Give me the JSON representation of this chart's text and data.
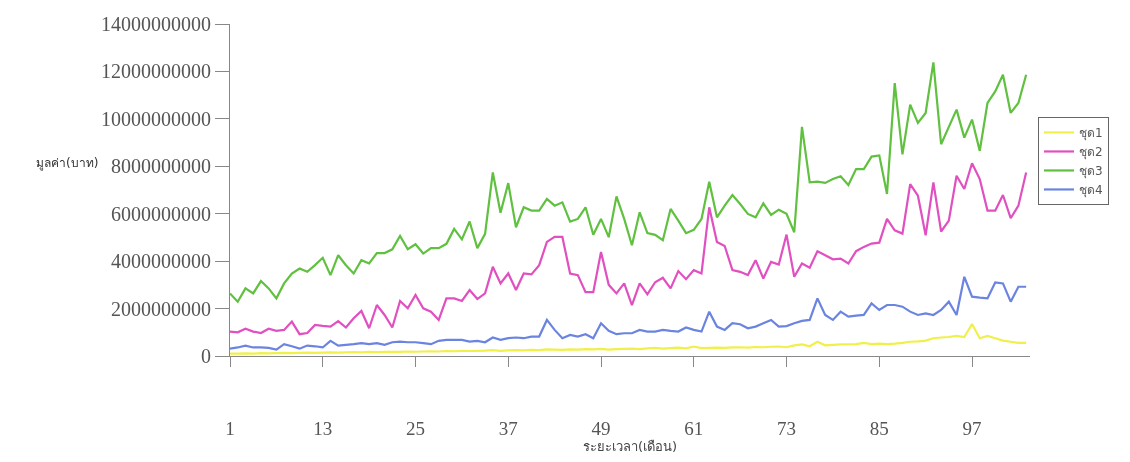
{
  "chart_data": {
    "type": "line",
    "xlabel": "ระยะเวลา(เดือน)",
    "ylabel": "มูลค่า(บาท)",
    "x": [
      1,
      2,
      3,
      4,
      5,
      6,
      7,
      8,
      9,
      10,
      11,
      12,
      13,
      14,
      15,
      16,
      17,
      18,
      19,
      20,
      21,
      22,
      23,
      24,
      25,
      26,
      27,
      28,
      29,
      30,
      31,
      32,
      33,
      34,
      35,
      36,
      37,
      38,
      39,
      40,
      41,
      42,
      43,
      44,
      45,
      46,
      47,
      48,
      49,
      50,
      51,
      52,
      53,
      54,
      55,
      56,
      57,
      58,
      59,
      60,
      61,
      62,
      63,
      64,
      65,
      66,
      67,
      68,
      69,
      70,
      71,
      72,
      73,
      74,
      75,
      76,
      77,
      78,
      79,
      80,
      81,
      82,
      83,
      84,
      85,
      86,
      87,
      88,
      89,
      90,
      91,
      92,
      93,
      94,
      95,
      96,
      97,
      98,
      99,
      100,
      101,
      102,
      103,
      104
    ],
    "xlim": [
      1,
      104.5
    ],
    "xticks": [
      1,
      13,
      25,
      37,
      49,
      61,
      73,
      85,
      97
    ],
    "ylim": [
      0,
      14000000000
    ],
    "yticks": [
      0,
      2000000000,
      4000000000,
      6000000000,
      8000000000,
      10000000000,
      12000000000,
      14000000000
    ],
    "legend": "right",
    "marker": "none",
    "line_style": "solid",
    "series": [
      {
        "name": "ชุด1",
        "color": "#f0f04a",
        "values": [
          100000000.0,
          100000000.0,
          110000000.0,
          100000000.0,
          120000000.0,
          110000000.0,
          120000000.0,
          130000000.0,
          120000000.0,
          130000000.0,
          140000000.0,
          130000000.0,
          140000000.0,
          150000000.0,
          140000000.0,
          150000000.0,
          160000000.0,
          150000000.0,
          170000000.0,
          160000000.0,
          170000000.0,
          180000000.0,
          170000000.0,
          190000000.0,
          180000000.0,
          190000000.0,
          200000000.0,
          190000000.0,
          210000000.0,
          200000000.0,
          220000000.0,
          210000000.0,
          220000000.0,
          230000000.0,
          250000000.0,
          220000000.0,
          240000000.0,
          250000000.0,
          240000000.0,
          260000000.0,
          250000000.0,
          280000000.0,
          270000000.0,
          260000000.0,
          280000000.0,
          270000000.0,
          290000000.0,
          280000000.0,
          300000000.0,
          270000000.0,
          290000000.0,
          300000000.0,
          310000000.0,
          290000000.0,
          320000000.0,
          340000000.0,
          310000000.0,
          330000000.0,
          350000000.0,
          320000000.0,
          400000000.0,
          330000000.0,
          340000000.0,
          350000000.0,
          340000000.0,
          360000000.0,
          370000000.0,
          350000000.0,
          380000000.0,
          370000000.0,
          390000000.0,
          400000000.0,
          370000000.0,
          450000000.0,
          490000000.0,
          410000000.0,
          600000000.0,
          450000000.0,
          470000000.0,
          490000000.0,
          490000000.0,
          500000000.0,
          550000000.0,
          500000000.0,
          520000000.0,
          500000000.0,
          520000000.0,
          550000000.0,
          600000000.0,
          620000000.0,
          650000000.0,
          750000000.0,
          780000000.0,
          800000000.0,
          850000000.0,
          800000000.0,
          1350000000.0,
          750000000.0,
          850000000.0,
          750000000.0,
          650000000.0,
          600000000.0,
          550000000.0,
          550000000.0
        ]
      },
      {
        "name": "ชุด2",
        "color": "#e050c0",
        "values": [
          1030000000.0,
          1000000000.0,
          1150000000.0,
          1030000000.0,
          970000000.0,
          1150000000.0,
          1060000000.0,
          1100000000.0,
          1450000000.0,
          920000000.0,
          970000000.0,
          1310000000.0,
          1270000000.0,
          1240000000.0,
          1470000000.0,
          1200000000.0,
          1590000000.0,
          1900000000.0,
          1170000000.0,
          2150000000.0,
          1730000000.0,
          1200000000.0,
          2320000000.0,
          2010000000.0,
          2570000000.0,
          2010000000.0,
          1870000000.0,
          1520000000.0,
          2430000000.0,
          2430000000.0,
          2320000000.0,
          2780000000.0,
          2400000000.0,
          2640000000.0,
          3760000000.0,
          3060000000.0,
          3480000000.0,
          2780000000.0,
          3480000000.0,
          3440000000.0,
          3830000000.0,
          4810000000.0,
          5020000000.0,
          5020000000.0,
          3480000000.0,
          3410000000.0,
          2690000000.0,
          2690000000.0,
          4390000000.0,
          3000000000.0,
          2640000000.0,
          3060000000.0,
          2150000000.0,
          3060000000.0,
          2600000000.0,
          3110000000.0,
          3300000000.0,
          2850000000.0,
          3580000000.0,
          3240000000.0,
          3620000000.0,
          3480000000.0,
          6270000000.0,
          4810000000.0,
          4640000000.0,
          3620000000.0,
          3550000000.0,
          3410000000.0,
          4040000000.0,
          3270000000.0,
          3970000000.0,
          3860000000.0,
          5120000000.0,
          3340000000.0,
          3900000000.0,
          3720000000.0,
          4420000000.0,
          4250000000.0,
          4080000000.0,
          4110000000.0,
          3900000000.0,
          4420000000.0,
          4600000000.0,
          4740000000.0,
          4780000000.0,
          5780000000.0,
          5300000000.0,
          5160000000.0,
          7250000000.0,
          6760000000.0,
          5090000000.0,
          7320000000.0,
          5250000000.0,
          5710000000.0,
          7600000000.0,
          7040000000.0,
          8130000000.0,
          7460000000.0,
          6130000000.0,
          6130000000.0,
          6790000000.0,
          5810000000.0,
          6340000000.0,
          7740000000.0
        ]
      },
      {
        "name": "ชุด3",
        "color": "#60c040",
        "values": [
          2640000000.0,
          2290000000.0,
          2850000000.0,
          2640000000.0,
          3160000000.0,
          2850000000.0,
          2430000000.0,
          3060000000.0,
          3480000000.0,
          3690000000.0,
          3550000000.0,
          3830000000.0,
          4140000000.0,
          3410000000.0,
          4250000000.0,
          3830000000.0,
          3480000000.0,
          4040000000.0,
          3900000000.0,
          4340000000.0,
          4340000000.0,
          4500000000.0,
          5060000000.0,
          4500000000.0,
          4710000000.0,
          4320000000.0,
          4550000000.0,
          4550000000.0,
          4730000000.0,
          5360000000.0,
          4920000000.0,
          5670000000.0,
          4550000000.0,
          5150000000.0,
          7740000000.0,
          6040000000.0,
          7290000000.0,
          5430000000.0,
          6270000000.0,
          6130000000.0,
          6130000000.0,
          6620000000.0,
          6340000000.0,
          6480000000.0,
          5670000000.0,
          5780000000.0,
          6270000000.0,
          5110000000.0,
          5780000000.0,
          5010000000.0,
          6730000000.0,
          5780000000.0,
          4670000000.0,
          6060000000.0,
          5180000000.0,
          5110000000.0,
          4880000000.0,
          6200000000.0,
          5710000000.0,
          5180000000.0,
          5320000000.0,
          5780000000.0,
          7350000000.0,
          5850000000.0,
          6340000000.0,
          6790000000.0,
          6410000000.0,
          5990000000.0,
          5850000000.0,
          6440000000.0,
          5950000000.0,
          6170000000.0,
          6000000000.0,
          5220000000.0,
          9660000000.0,
          7320000000.0,
          7350000000.0,
          7300000000.0,
          7460000000.0,
          7580000000.0,
          7210000000.0,
          7880000000.0,
          7880000000.0,
          8410000000.0,
          8460000000.0,
          6830000000.0,
          11510000000.0,
          8500000000.0,
          10600000000.0,
          9830000000.0,
          10250000000.0,
          12380000000.0,
          8930000000.0,
          9660000000.0,
          10390000000.0,
          9210000000.0,
          9970000000.0,
          8650000000.0,
          10670000000.0,
          11160000000.0,
          11860000000.0,
          10250000000.0,
          10670000000.0,
          11860000000.0
        ]
      },
      {
        "name": "ชุด4",
        "color": "#6a84e0",
        "values": [
          310000000.0,
          360000000.0,
          440000000.0,
          360000000.0,
          360000000.0,
          340000000.0,
          270000000.0,
          500000000.0,
          410000000.0,
          310000000.0,
          440000000.0,
          410000000.0,
          360000000.0,
          640000000.0,
          440000000.0,
          470000000.0,
          500000000.0,
          540000000.0,
          500000000.0,
          540000000.0,
          470000000.0,
          580000000.0,
          610000000.0,
          580000000.0,
          580000000.0,
          540000000.0,
          500000000.0,
          640000000.0,
          680000000.0,
          680000000.0,
          680000000.0,
          610000000.0,
          640000000.0,
          580000000.0,
          780000000.0,
          680000000.0,
          750000000.0,
          780000000.0,
          750000000.0,
          820000000.0,
          820000000.0,
          1520000000.0,
          1100000000.0,
          750000000.0,
          890000000.0,
          820000000.0,
          920000000.0,
          750000000.0,
          1380000000.0,
          1060000000.0,
          920000000.0,
          960000000.0,
          960000000.0,
          1100000000.0,
          1030000000.0,
          1030000000.0,
          1100000000.0,
          1060000000.0,
          1030000000.0,
          1200000000.0,
          1100000000.0,
          1030000000.0,
          1870000000.0,
          1240000000.0,
          1100000000.0,
          1380000000.0,
          1340000000.0,
          1170000000.0,
          1240000000.0,
          1380000000.0,
          1520000000.0,
          1240000000.0,
          1260000000.0,
          1380000000.0,
          1480000000.0,
          1520000000.0,
          2430000000.0,
          1730000000.0,
          1520000000.0,
          1870000000.0,
          1660000000.0,
          1700000000.0,
          1730000000.0,
          2220000000.0,
          1940000000.0,
          2150000000.0,
          2150000000.0,
          2080000000.0,
          1870000000.0,
          1730000000.0,
          1800000000.0,
          1730000000.0,
          1940000000.0,
          2290000000.0,
          1730000000.0,
          3340000000.0,
          2500000000.0,
          2460000000.0,
          2430000000.0,
          3100000000.0,
          3060000000.0,
          2290000000.0,
          2920000000.0,
          2920000000.0
        ]
      }
    ]
  }
}
